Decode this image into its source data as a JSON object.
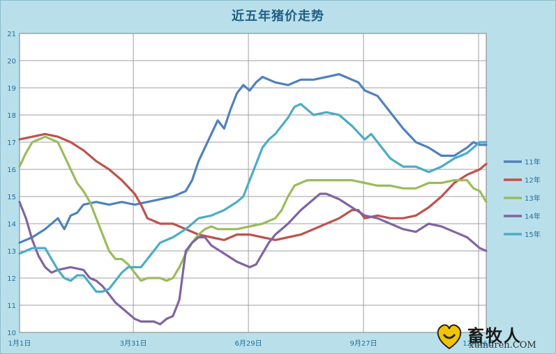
{
  "chart_data": {
    "type": "line",
    "title": "近五年猪价走势",
    "ylim": [
      10,
      21
    ],
    "yticks": [
      "10",
      "11",
      "12",
      "13",
      "14",
      "15",
      "16",
      "17",
      "18",
      "19",
      "20",
      "21"
    ],
    "xlim": [
      0,
      365
    ],
    "xticks": [
      {
        "label": "1月1日",
        "day": 0
      },
      {
        "label": "3月31日",
        "day": 89
      },
      {
        "label": "6月29日",
        "day": 179
      },
      {
        "label": "9月27日",
        "day": 269
      },
      {
        "label": "12月26日",
        "day": 359
      }
    ],
    "legend_position": "right",
    "grid": true,
    "series": [
      {
        "name": "11年",
        "color": "#4f81bd",
        "x": [
          0,
          10,
          20,
          30,
          35,
          40,
          45,
          50,
          60,
          70,
          80,
          90,
          100,
          110,
          120,
          130,
          135,
          140,
          150,
          155,
          160,
          165,
          170,
          175,
          180,
          185,
          190,
          195,
          200,
          210,
          220,
          230,
          240,
          250,
          255,
          260,
          265,
          270,
          280,
          290,
          300,
          310,
          320,
          330,
          340,
          350,
          355,
          360,
          365
        ],
        "y": [
          13.3,
          13.5,
          13.8,
          14.2,
          13.8,
          14.3,
          14.4,
          14.7,
          14.8,
          14.7,
          14.8,
          14.7,
          14.8,
          14.9,
          15.0,
          15.2,
          15.6,
          16.3,
          17.3,
          17.8,
          17.5,
          18.2,
          18.8,
          19.1,
          18.9,
          19.2,
          19.4,
          19.3,
          19.2,
          19.1,
          19.3,
          19.3,
          19.4,
          19.5,
          19.4,
          19.3,
          19.2,
          18.9,
          18.7,
          18.1,
          17.5,
          17.0,
          16.8,
          16.5,
          16.5,
          16.8,
          17.0,
          16.9,
          16.9
        ]
      },
      {
        "name": "12年",
        "color": "#c0504d",
        "x": [
          0,
          10,
          20,
          30,
          40,
          50,
          60,
          70,
          80,
          90,
          95,
          100,
          110,
          120,
          130,
          140,
          150,
          160,
          170,
          180,
          190,
          200,
          210,
          220,
          230,
          240,
          250,
          260,
          265,
          270,
          280,
          290,
          300,
          310,
          320,
          330,
          340,
          350,
          360,
          365
        ],
        "y": [
          17.1,
          17.2,
          17.3,
          17.2,
          17.0,
          16.7,
          16.3,
          16.0,
          15.6,
          15.1,
          14.7,
          14.2,
          14.0,
          14.0,
          13.8,
          13.6,
          13.5,
          13.4,
          13.6,
          13.6,
          13.5,
          13.4,
          13.5,
          13.6,
          13.8,
          14.0,
          14.2,
          14.5,
          14.5,
          14.2,
          14.3,
          14.2,
          14.2,
          14.3,
          14.6,
          15.0,
          15.5,
          15.8,
          16.0,
          16.2
        ]
      },
      {
        "name": "13年",
        "color": "#9bbb59",
        "x": [
          0,
          5,
          10,
          20,
          30,
          35,
          40,
          45,
          50,
          55,
          60,
          65,
          70,
          75,
          80,
          85,
          90,
          95,
          100,
          105,
          110,
          115,
          120,
          125,
          130,
          135,
          140,
          145,
          150,
          155,
          160,
          170,
          180,
          190,
          200,
          205,
          210,
          215,
          220,
          225,
          230,
          240,
          250,
          260,
          270,
          280,
          290,
          300,
          310,
          320,
          330,
          340,
          350,
          355,
          360,
          365
        ],
        "y": [
          16.1,
          16.6,
          17.0,
          17.2,
          17.0,
          16.5,
          16.0,
          15.5,
          15.2,
          14.8,
          14.2,
          13.6,
          13.0,
          12.7,
          12.7,
          12.5,
          12.2,
          11.9,
          12.0,
          12.0,
          12.0,
          11.9,
          12.0,
          12.4,
          12.9,
          13.3,
          13.6,
          13.8,
          13.9,
          13.8,
          13.8,
          13.8,
          13.9,
          14.0,
          14.2,
          14.5,
          15.0,
          15.4,
          15.5,
          15.6,
          15.6,
          15.6,
          15.6,
          15.6,
          15.5,
          15.4,
          15.4,
          15.3,
          15.3,
          15.5,
          15.5,
          15.6,
          15.6,
          15.3,
          15.2,
          14.8
        ]
      },
      {
        "name": "14年",
        "color": "#8064a2",
        "x": [
          0,
          5,
          10,
          15,
          20,
          25,
          30,
          40,
          50,
          55,
          60,
          65,
          70,
          75,
          80,
          85,
          90,
          95,
          100,
          105,
          110,
          115,
          120,
          125,
          130,
          135,
          140,
          145,
          150,
          160,
          170,
          175,
          180,
          185,
          190,
          195,
          200,
          210,
          220,
          230,
          235,
          240,
          250,
          260,
          270,
          280,
          290,
          300,
          310,
          320,
          330,
          340,
          350,
          360,
          365
        ],
        "y": [
          14.8,
          14.2,
          13.4,
          12.8,
          12.4,
          12.2,
          12.3,
          12.4,
          12.3,
          12.0,
          11.9,
          11.7,
          11.4,
          11.1,
          10.9,
          10.7,
          10.5,
          10.4,
          10.4,
          10.4,
          10.3,
          10.5,
          10.6,
          11.2,
          13.0,
          13.3,
          13.5,
          13.5,
          13.2,
          12.9,
          12.6,
          12.5,
          12.4,
          12.5,
          12.9,
          13.3,
          13.6,
          14.0,
          14.5,
          14.9,
          15.1,
          15.1,
          14.9,
          14.6,
          14.3,
          14.2,
          14.0,
          13.8,
          13.7,
          14.0,
          13.9,
          13.7,
          13.5,
          13.1,
          13.0
        ]
      },
      {
        "name": "15年",
        "color": "#4bacc6",
        "x": [
          0,
          10,
          20,
          25,
          30,
          35,
          40,
          45,
          50,
          55,
          60,
          65,
          70,
          75,
          80,
          85,
          90,
          95,
          100,
          105,
          110,
          115,
          120,
          130,
          140,
          150,
          160,
          170,
          175,
          180,
          185,
          190,
          195,
          200,
          210,
          215,
          220,
          225,
          230,
          240,
          250,
          260,
          270,
          275,
          280,
          285,
          290,
          300,
          310,
          320,
          330,
          340,
          350,
          360,
          365
        ],
        "y": [
          12.9,
          13.1,
          13.1,
          12.7,
          12.3,
          12.0,
          11.9,
          12.1,
          12.1,
          11.8,
          11.5,
          11.5,
          11.6,
          11.9,
          12.2,
          12.4,
          12.4,
          12.4,
          12.7,
          13.0,
          13.3,
          13.4,
          13.5,
          13.8,
          14.2,
          14.3,
          14.5,
          14.8,
          15.0,
          15.6,
          16.2,
          16.8,
          17.1,
          17.3,
          17.9,
          18.3,
          18.4,
          18.2,
          18.0,
          18.1,
          18.0,
          17.6,
          17.1,
          17.3,
          17.0,
          16.7,
          16.4,
          16.1,
          16.1,
          15.9,
          16.1,
          16.4,
          16.6,
          17.0,
          17.0
        ]
      }
    ]
  },
  "watermark": {
    "text": "畜牧人",
    "url": "xumuren.COM"
  }
}
